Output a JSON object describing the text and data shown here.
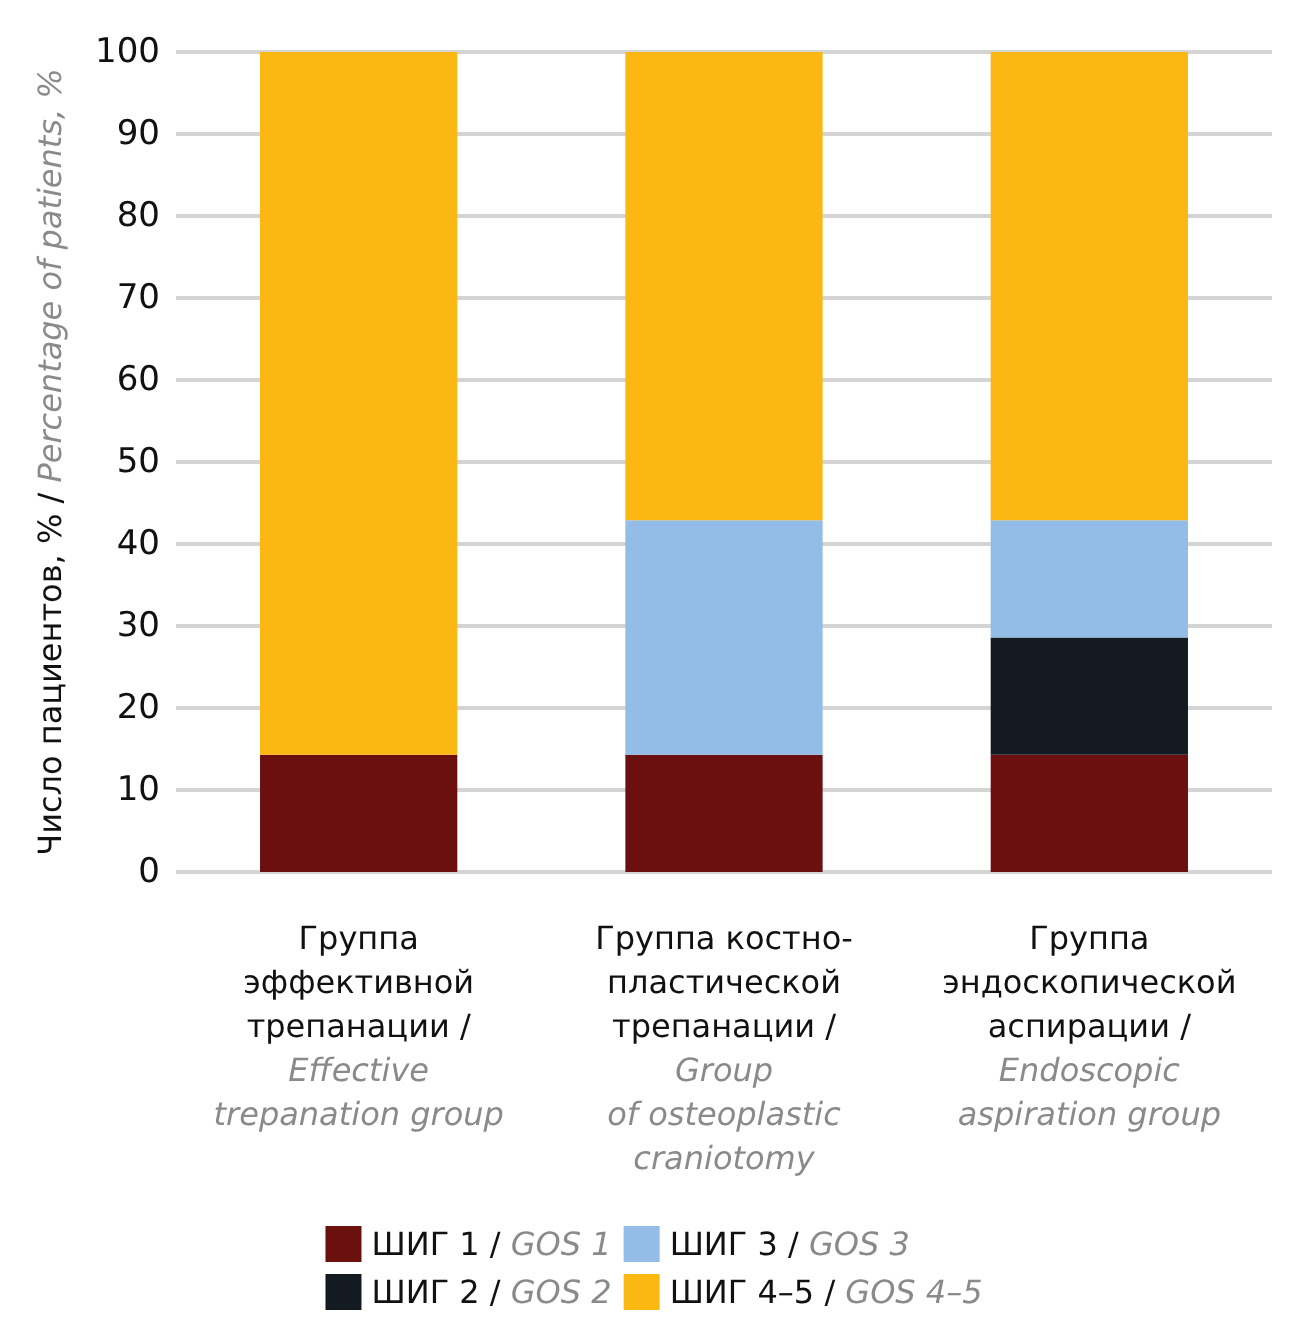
{
  "chart_data": {
    "type": "bar",
    "stacked": true,
    "ylabel": "Число пациентов, % / Percentage of patients, %",
    "categories": [
      "Группа\nэффективной\nтрепанации /\nEffective\ntrepanation group",
      "Группа костно-\nпластической\nтрепанации /\nGroup\nof osteoplastic\ncraniotomy",
      "Группа\nэндоскопической\nаспирации /\nEndoscopic\naspiration group"
    ],
    "series": [
      {
        "name": "ШИГ 1 / GOS 1",
        "color": "#6b0f0f",
        "values": [
          14.3,
          14.3,
          14.3
        ]
      },
      {
        "name": "ШИГ 2 / GOS 2",
        "color": "#141a22",
        "values": [
          null,
          null,
          14.3
        ]
      },
      {
        "name": "ШИГ 3 / GOS 3",
        "color": "#93bde6",
        "values": [
          null,
          28.6,
          14.3
        ]
      },
      {
        "name": "ШИГ 4–5 / GOS 4–5",
        "color": "#fbb813",
        "values": [
          85.7,
          57.1,
          57.1
        ]
      }
    ],
    "ylim": [
      0,
      100
    ],
    "yticks": [
      0,
      10,
      20,
      30,
      40,
      50,
      60,
      70,
      80,
      90,
      100
    ],
    "grid": "y",
    "legend": "bottom"
  }
}
